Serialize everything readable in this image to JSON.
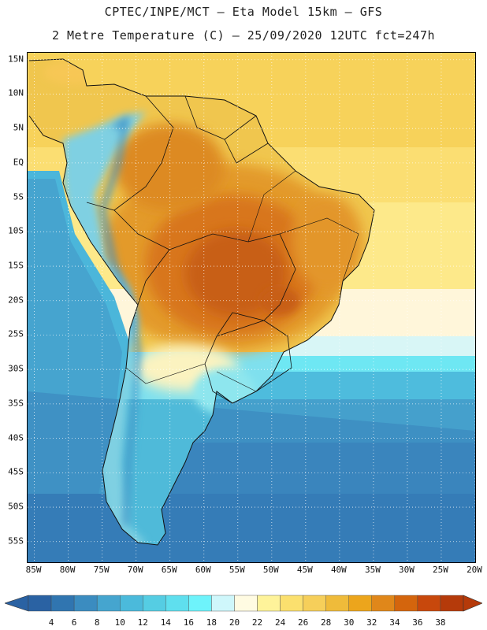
{
  "title_line1": "CPTEC/INPE/MCT –  Eta Model 15km – GFS",
  "title_line2": "2 Metre Temperature (C) – 25/09/2020 12UTC fct=247h",
  "map": {
    "region": "South America",
    "lon_range": [
      -86,
      -20
    ],
    "lat_range": [
      -58,
      16
    ],
    "lat_labels": [
      {
        "lat": 15,
        "label": "15N"
      },
      {
        "lat": 10,
        "label": "10N"
      },
      {
        "lat": 5,
        "label": "5N"
      },
      {
        "lat": 0,
        "label": "EQ"
      },
      {
        "lat": -5,
        "label": "5S"
      },
      {
        "lat": -10,
        "label": "10S"
      },
      {
        "lat": -15,
        "label": "15S"
      },
      {
        "lat": -20,
        "label": "20S"
      },
      {
        "lat": -25,
        "label": "25S"
      },
      {
        "lat": -30,
        "label": "30S"
      },
      {
        "lat": -35,
        "label": "35S"
      },
      {
        "lat": -40,
        "label": "40S"
      },
      {
        "lat": -45,
        "label": "45S"
      },
      {
        "lat": -50,
        "label": "50S"
      },
      {
        "lat": -55,
        "label": "55S"
      }
    ],
    "lon_labels": [
      {
        "lon": -85,
        "label": "85W"
      },
      {
        "lon": -80,
        "label": "80W"
      },
      {
        "lon": -75,
        "label": "75W"
      },
      {
        "lon": -70,
        "label": "70W"
      },
      {
        "lon": -65,
        "label": "65W"
      },
      {
        "lon": -60,
        "label": "60W"
      },
      {
        "lon": -55,
        "label": "55W"
      },
      {
        "lon": -50,
        "label": "50W"
      },
      {
        "lon": -45,
        "label": "45W"
      },
      {
        "lon": -40,
        "label": "40W"
      },
      {
        "lon": -35,
        "label": "35W"
      },
      {
        "lon": -30,
        "label": "30W"
      },
      {
        "lon": -25,
        "label": "25W"
      },
      {
        "lon": -20,
        "label": "20W"
      }
    ]
  },
  "colorbar": {
    "labels": [
      "4",
      "6",
      "8",
      "10",
      "12",
      "14",
      "16",
      "18",
      "20",
      "22",
      "24",
      "26",
      "28",
      "30",
      "32",
      "34",
      "36",
      "38"
    ],
    "colors": [
      "#2a62a3",
      "#3075b0",
      "#3b8cc0",
      "#45a5cf",
      "#4bbadb",
      "#55cde3",
      "#5fdfee",
      "#6ef3fb",
      "#cff7fb",
      "#fffbe2",
      "#fef39a",
      "#fbe06e",
      "#f6cf5a",
      "#efbb3a",
      "#eca51c",
      "#e0871a",
      "#d4650d",
      "#c8480c",
      "#b53a0a"
    ],
    "low_end_color": "#2a62a3",
    "high_end_color": "#b53a0a"
  }
}
